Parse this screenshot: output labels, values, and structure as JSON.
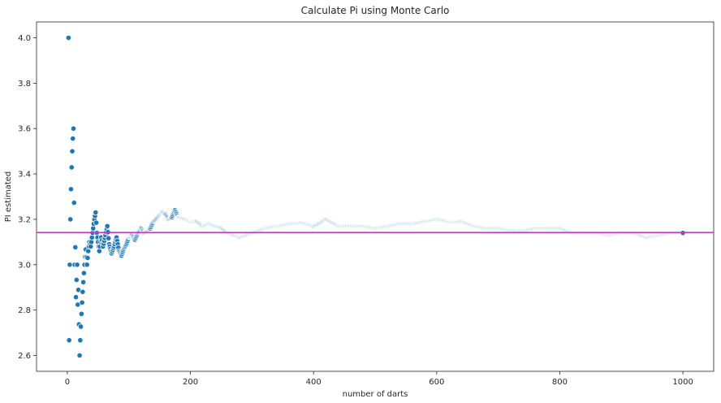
{
  "chart_data": {
    "type": "scatter",
    "title": "Calculate Pi using Monte Carlo",
    "xlabel": "number of darts",
    "ylabel": "PI estimated",
    "xlim": [
      -50,
      1050
    ],
    "ylim": [
      2.53,
      4.07
    ],
    "xticks": [
      0,
      200,
      400,
      600,
      800,
      1000
    ],
    "yticks": [
      2.6,
      2.8,
      3.0,
      3.2,
      3.4,
      3.6,
      3.8,
      4.0
    ],
    "grid": false,
    "reference_line": {
      "y": 3.14159,
      "color": "#bf3fbf"
    },
    "point_color": "#1f77b4",
    "series": [
      {
        "anchors": [
          [
            1,
            4.0
          ],
          [
            2,
            4.0
          ],
          [
            3,
            2.667
          ],
          [
            4,
            3.0
          ],
          [
            5,
            3.2
          ],
          [
            6,
            3.333
          ],
          [
            7,
            3.429
          ],
          [
            8,
            3.5
          ],
          [
            9,
            3.556
          ],
          [
            10,
            3.6
          ],
          [
            11,
            3.273
          ],
          [
            12,
            3.0
          ],
          [
            13,
            3.077
          ],
          [
            14,
            2.857
          ],
          [
            15,
            2.933
          ],
          [
            16,
            3.0
          ],
          [
            17,
            2.824
          ],
          [
            18,
            2.889
          ],
          [
            19,
            2.737
          ],
          [
            20,
            2.6
          ],
          [
            21,
            2.667
          ],
          [
            22,
            2.727
          ],
          [
            23,
            2.783
          ],
          [
            24,
            2.833
          ],
          [
            25,
            2.88
          ],
          [
            26,
            2.923
          ],
          [
            27,
            2.963
          ],
          [
            28,
            3.0
          ],
          [
            29,
            3.034
          ],
          [
            30,
            3.067
          ],
          [
            32,
            3.0
          ],
          [
            34,
            3.06
          ],
          [
            36,
            3.1
          ],
          [
            38,
            3.08
          ],
          [
            40,
            3.12
          ],
          [
            42,
            3.16
          ],
          [
            44,
            3.2
          ],
          [
            46,
            3.23
          ],
          [
            48,
            3.14
          ],
          [
            50,
            3.1
          ],
          [
            52,
            3.06
          ],
          [
            55,
            3.12
          ],
          [
            58,
            3.08
          ],
          [
            62,
            3.13
          ],
          [
            65,
            3.17
          ],
          [
            68,
            3.09
          ],
          [
            72,
            3.05
          ],
          [
            76,
            3.08
          ],
          [
            80,
            3.12
          ],
          [
            84,
            3.06
          ],
          [
            88,
            3.04
          ],
          [
            92,
            3.07
          ],
          [
            96,
            3.09
          ],
          [
            100,
            3.12
          ],
          [
            105,
            3.13
          ],
          [
            110,
            3.11
          ],
          [
            115,
            3.14
          ],
          [
            120,
            3.16
          ],
          [
            125,
            3.14
          ],
          [
            130,
            3.15
          ],
          [
            135,
            3.16
          ],
          [
            140,
            3.19
          ],
          [
            150,
            3.22
          ],
          [
            155,
            3.23
          ],
          [
            160,
            3.22
          ],
          [
            165,
            3.2
          ],
          [
            170,
            3.21
          ],
          [
            175,
            3.24
          ],
          [
            180,
            3.21
          ],
          [
            190,
            3.2
          ],
          [
            200,
            3.19
          ],
          [
            210,
            3.19
          ],
          [
            220,
            3.17
          ],
          [
            230,
            3.18
          ],
          [
            240,
            3.17
          ],
          [
            250,
            3.16
          ],
          [
            260,
            3.14
          ],
          [
            270,
            3.13
          ],
          [
            280,
            3.12
          ],
          [
            290,
            3.13
          ],
          [
            300,
            3.14
          ],
          [
            320,
            3.16
          ],
          [
            340,
            3.17
          ],
          [
            360,
            3.18
          ],
          [
            380,
            3.185
          ],
          [
            400,
            3.17
          ],
          [
            420,
            3.2
          ],
          [
            440,
            3.17
          ],
          [
            460,
            3.17
          ],
          [
            480,
            3.17
          ],
          [
            500,
            3.16
          ],
          [
            520,
            3.17
          ],
          [
            540,
            3.18
          ],
          [
            560,
            3.18
          ],
          [
            580,
            3.19
          ],
          [
            600,
            3.2
          ],
          [
            620,
            3.19
          ],
          [
            640,
            3.19
          ],
          [
            660,
            3.17
          ],
          [
            680,
            3.16
          ],
          [
            700,
            3.16
          ],
          [
            720,
            3.15
          ],
          [
            740,
            3.15
          ],
          [
            760,
            3.16
          ],
          [
            780,
            3.16
          ],
          [
            800,
            3.16
          ],
          [
            820,
            3.14
          ],
          [
            840,
            3.14
          ],
          [
            860,
            3.14
          ],
          [
            880,
            3.13
          ],
          [
            900,
            3.14
          ],
          [
            920,
            3.14
          ],
          [
            940,
            3.12
          ],
          [
            960,
            3.13
          ],
          [
            980,
            3.14
          ],
          [
            1000,
            3.14
          ]
        ]
      }
    ]
  }
}
